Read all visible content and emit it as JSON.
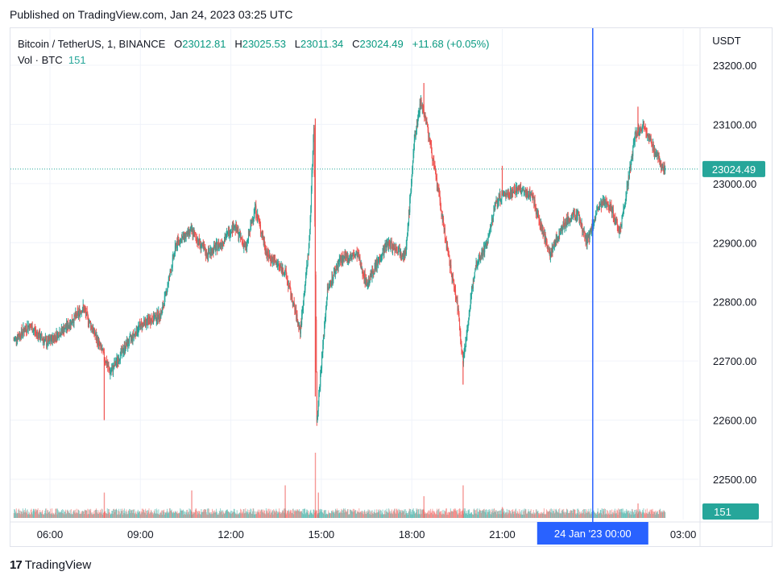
{
  "published": "Published on TradingView.com, Jan 24, 2023 03:25 UTC",
  "legend": {
    "symbol": "Bitcoin / TetherUS, 1, BINANCE",
    "open_label": "O",
    "open": "23012.81",
    "high_label": "H",
    "high": "23025.53",
    "low_label": "L",
    "low": "23011.34",
    "close_label": "C",
    "close": "23024.49",
    "change": "+11.68 (+0.05%)",
    "vol_label": "Vol · BTC",
    "vol_value": "151"
  },
  "footer": {
    "logo": "17",
    "brand": "TradingView"
  },
  "colors": {
    "up": "#26a69a",
    "down": "#ef5350",
    "crosshair": "#2962ff",
    "price_tag": "#26a69a",
    "grid": "#f0f3fa"
  },
  "chart_data": {
    "type": "candlestick",
    "ylabel": "USDT",
    "ylim": [
      22440,
      23240
    ],
    "y_ticks": [
      "22500.00",
      "22600.00",
      "22700.00",
      "22800.00",
      "22900.00",
      "23000.00",
      "23100.00",
      "23200.00"
    ],
    "x_ticks": [
      "06:00",
      "09:00",
      "12:00",
      "15:00",
      "18:00",
      "21:00",
      "03:00"
    ],
    "crosshair_label": "24 Jan '23   00:00",
    "last_price": "23024.49",
    "last_volume": "151",
    "price_path": [
      [
        4.8,
        22735
      ],
      [
        5.3,
        22760
      ],
      [
        5.9,
        22730
      ],
      [
        6.6,
        22760
      ],
      [
        7.1,
        22790
      ],
      [
        7.7,
        22720
      ],
      [
        8.0,
        22680
      ],
      [
        8.5,
        22725
      ],
      [
        9.0,
        22760
      ],
      [
        9.7,
        22780
      ],
      [
        10.2,
        22900
      ],
      [
        10.7,
        22920
      ],
      [
        11.2,
        22880
      ],
      [
        11.7,
        22900
      ],
      [
        12.1,
        22930
      ],
      [
        12.5,
        22890
      ],
      [
        12.8,
        22960
      ],
      [
        13.2,
        22880
      ],
      [
        13.8,
        22850
      ],
      [
        14.3,
        22750
      ],
      [
        14.6,
        22900
      ],
      [
        14.75,
        23100
      ],
      [
        14.85,
        22600
      ],
      [
        15.2,
        22820
      ],
      [
        15.6,
        22870
      ],
      [
        16.2,
        22880
      ],
      [
        16.5,
        22830
      ],
      [
        17.2,
        22900
      ],
      [
        17.8,
        22880
      ],
      [
        18.1,
        23080
      ],
      [
        18.3,
        23140
      ],
      [
        18.5,
        23100
      ],
      [
        18.9,
        22980
      ],
      [
        19.2,
        22880
      ],
      [
        19.5,
        22800
      ],
      [
        19.7,
        22700
      ],
      [
        20.1,
        22860
      ],
      [
        20.5,
        22900
      ],
      [
        20.8,
        22970
      ],
      [
        21.0,
        22980
      ],
      [
        21.5,
        22990
      ],
      [
        22.0,
        22980
      ],
      [
        22.2,
        22940
      ],
      [
        22.6,
        22880
      ],
      [
        23.0,
        22930
      ],
      [
        23.5,
        22950
      ],
      [
        23.8,
        22900
      ],
      [
        24.2,
        22960
      ],
      [
        24.5,
        22970
      ],
      [
        24.9,
        22920
      ],
      [
        25.1,
        22980
      ],
      [
        25.4,
        23080
      ],
      [
        25.7,
        23100
      ],
      [
        26.0,
        23060
      ],
      [
        26.3,
        23030
      ],
      [
        26.4,
        23024.49
      ]
    ],
    "spike_highs": [
      [
        7.8,
        22600
      ],
      [
        14.8,
        23110
      ],
      [
        14.8,
        22640
      ],
      [
        18.4,
        23170
      ],
      [
        19.7,
        22660
      ],
      [
        21.0,
        23030
      ],
      [
        25.5,
        23130
      ]
    ],
    "volume_spikes": [
      [
        7.8,
        0.35
      ],
      [
        10.7,
        0.38
      ],
      [
        13.8,
        0.45
      ],
      [
        14.8,
        0.9
      ],
      [
        14.9,
        0.35
      ],
      [
        18.4,
        0.3
      ],
      [
        19.7,
        0.45
      ],
      [
        21.0,
        0.15
      ],
      [
        25.5,
        0.2
      ]
    ]
  }
}
